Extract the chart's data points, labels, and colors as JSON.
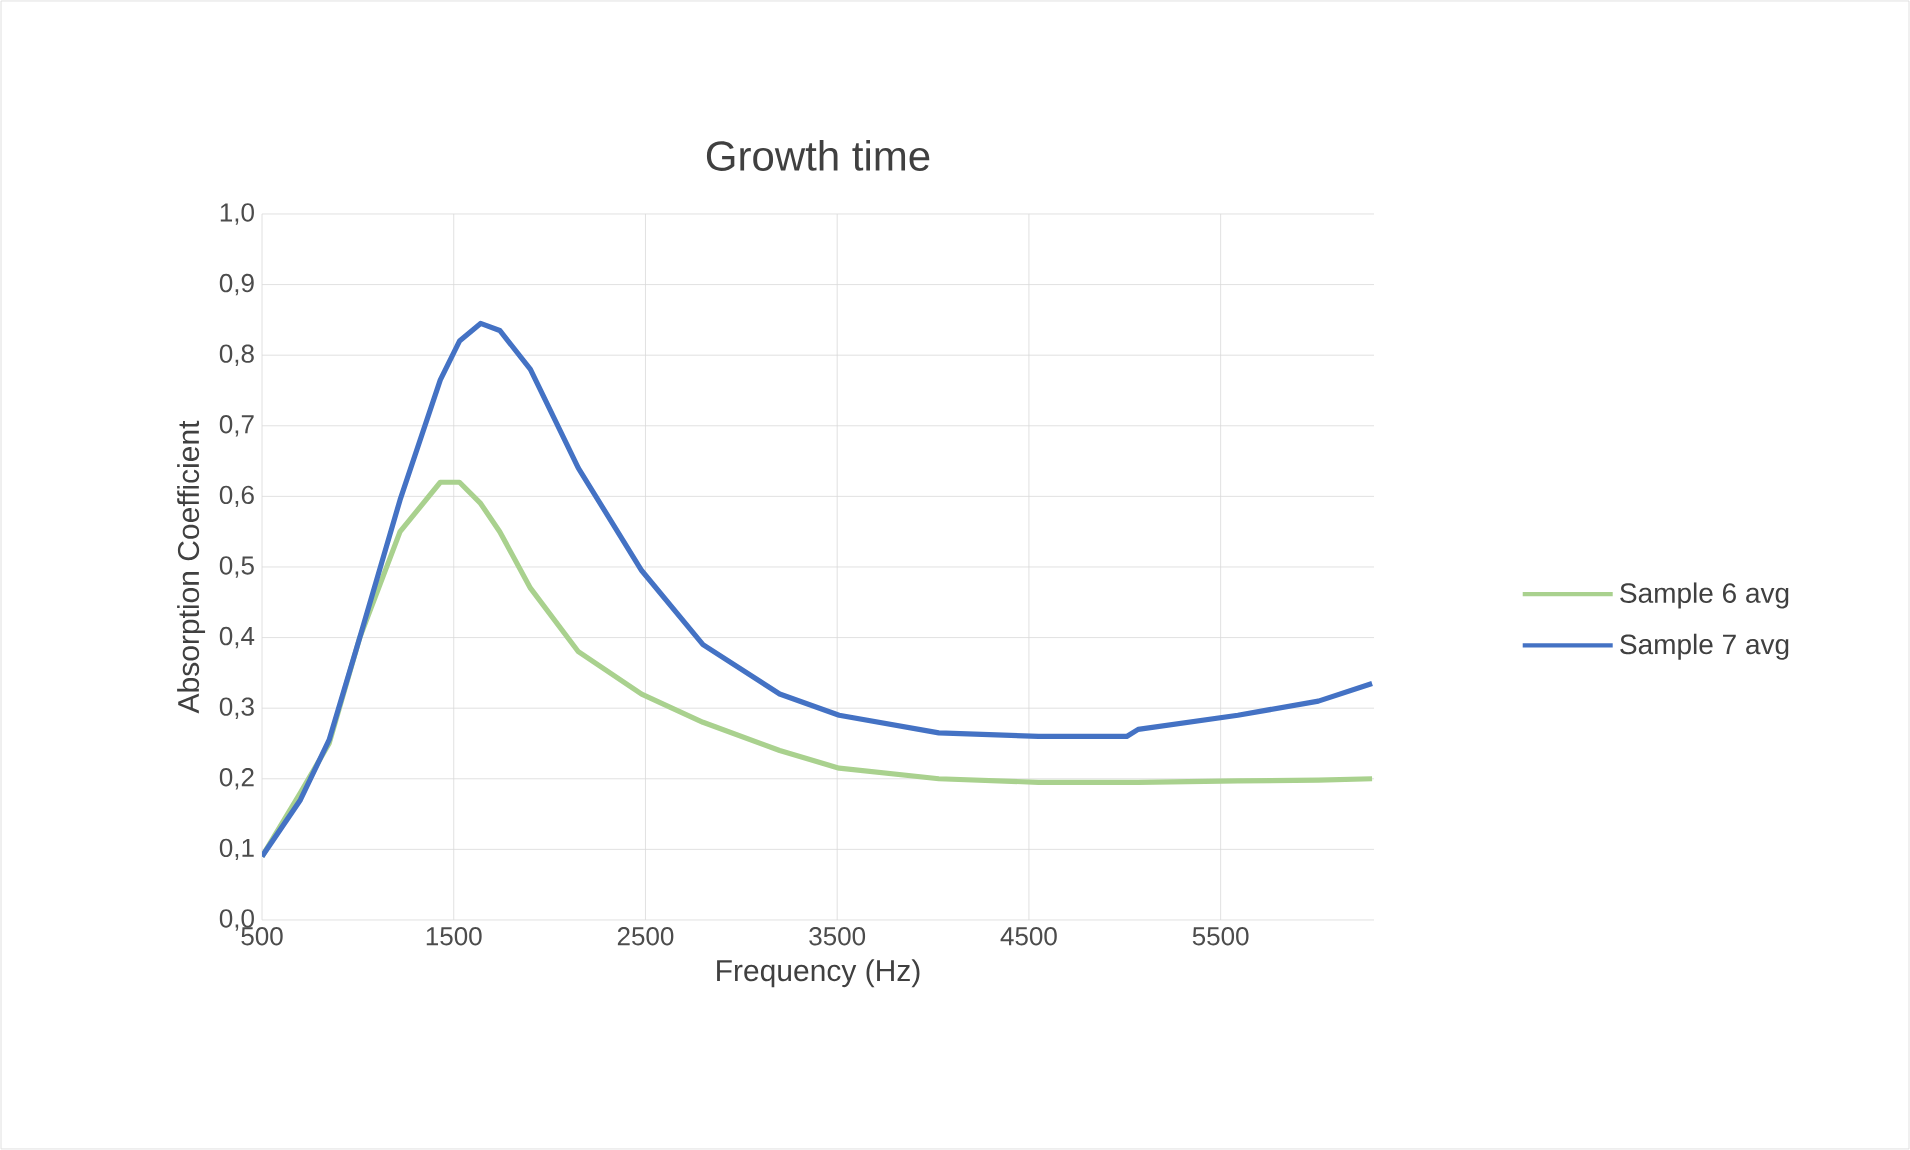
{
  "chart_data": {
    "type": "line",
    "title": "Growth time",
    "xlabel": "Frequency (Hz)",
    "ylabel": "Absorption Coefficient",
    "xlim": [
      500,
      6300
    ],
    "ylim": [
      0,
      1
    ],
    "xticks": [
      500,
      1500,
      2500,
      3500,
      4500,
      5500
    ],
    "yticks": [
      {
        "value": 0,
        "label": "0,0"
      },
      {
        "value": 0.1,
        "label": "0,1"
      },
      {
        "value": 0.2,
        "label": "0,2"
      },
      {
        "value": 0.3,
        "label": "0,3"
      },
      {
        "value": 0.4,
        "label": "0,4"
      },
      {
        "value": 0.5,
        "label": "0,5"
      },
      {
        "value": 0.6,
        "label": "0,6"
      },
      {
        "value": 0.7,
        "label": "0,7"
      },
      {
        "value": 0.8,
        "label": "0,8"
      },
      {
        "value": 0.9,
        "label": "0,9"
      },
      {
        "value": 1,
        "label": "1,0"
      }
    ],
    "x": [
      500,
      700,
      850,
      1010,
      1220,
      1430,
      1530,
      1640,
      1740,
      1900,
      2150,
      2480,
      2800,
      3200,
      3510,
      4030,
      4550,
      5010,
      5070,
      5590,
      6010,
      6290
    ],
    "series": [
      {
        "name": "Sample 6 avg",
        "color": "#a9d18e",
        "values": [
          0.09,
          0.18,
          0.25,
          0.4,
          0.55,
          0.62,
          0.62,
          0.59,
          0.55,
          0.47,
          0.38,
          0.32,
          0.28,
          0.24,
          0.215,
          0.2,
          0.195,
          0.195,
          0.195,
          0.197,
          0.198,
          0.2
        ]
      },
      {
        "name": "Sample 7 avg",
        "color": "#4472c4",
        "values": [
          0.09,
          0.17,
          0.255,
          0.4,
          0.595,
          0.765,
          0.82,
          0.845,
          0.835,
          0.78,
          0.64,
          0.495,
          0.39,
          0.32,
          0.29,
          0.265,
          0.26,
          0.26,
          0.27,
          0.29,
          0.31,
          0.335
        ]
      }
    ],
    "grid": true,
    "legend": "right",
    "marker": "none",
    "line_style": "solid"
  }
}
